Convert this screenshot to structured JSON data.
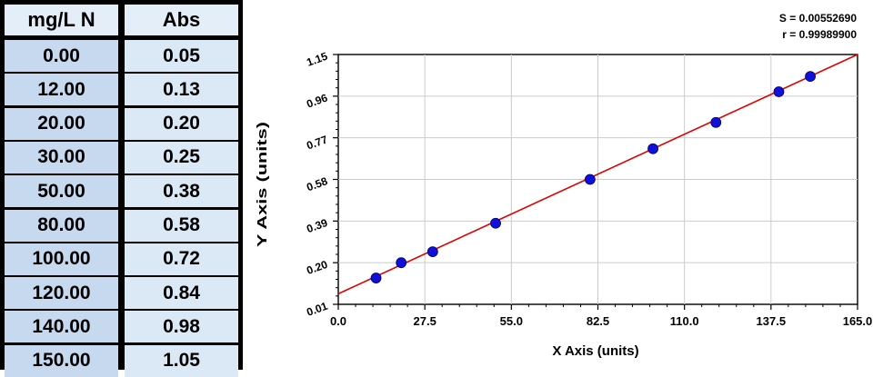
{
  "table": {
    "headers": [
      "mg/L N",
      "Abs"
    ],
    "rows": [
      [
        "0.00",
        "0.05"
      ],
      [
        "12.00",
        "0.13"
      ],
      [
        "20.00",
        "0.20"
      ],
      [
        "30.00",
        "0.25"
      ],
      [
        "50.00",
        "0.38"
      ],
      [
        "80.00",
        "0.58"
      ],
      [
        "100.00",
        "0.72"
      ],
      [
        "120.00",
        "0.84"
      ],
      [
        "140.00",
        "0.98"
      ],
      [
        "150.00",
        "1.05"
      ]
    ]
  },
  "chart_data": {
    "type": "scatter",
    "stats": [
      "S = 0.00552690",
      "r = 0.99989900"
    ],
    "xlabel": "X Axis (units)",
    "ylabel": "Y Axis (units)",
    "xlim": [
      0,
      165
    ],
    "ylim": [
      0.01,
      1.15
    ],
    "xticks": [
      "0.0",
      "27.5",
      "55.0",
      "82.5",
      "110.0",
      "137.5",
      "165.0"
    ],
    "yticks": [
      "0.01",
      "0.20",
      "0.39",
      "0.58",
      "0.77",
      "0.96",
      "1.15"
    ],
    "grid": true,
    "points": [
      {
        "x": 12,
        "y": 0.13
      },
      {
        "x": 20,
        "y": 0.2
      },
      {
        "x": 30,
        "y": 0.25
      },
      {
        "x": 50,
        "y": 0.38
      },
      {
        "x": 80,
        "y": 0.58
      },
      {
        "x": 100,
        "y": 0.72
      },
      {
        "x": 120,
        "y": 0.84
      },
      {
        "x": 140,
        "y": 0.98
      },
      {
        "x": 150,
        "y": 1.05
      }
    ],
    "fit_line": {
      "x": [
        0,
        165
      ],
      "y": [
        0.058,
        1.15
      ]
    },
    "colors": {
      "points": "#1010d8",
      "line": "#e00000",
      "grid": "#cccccc"
    }
  }
}
